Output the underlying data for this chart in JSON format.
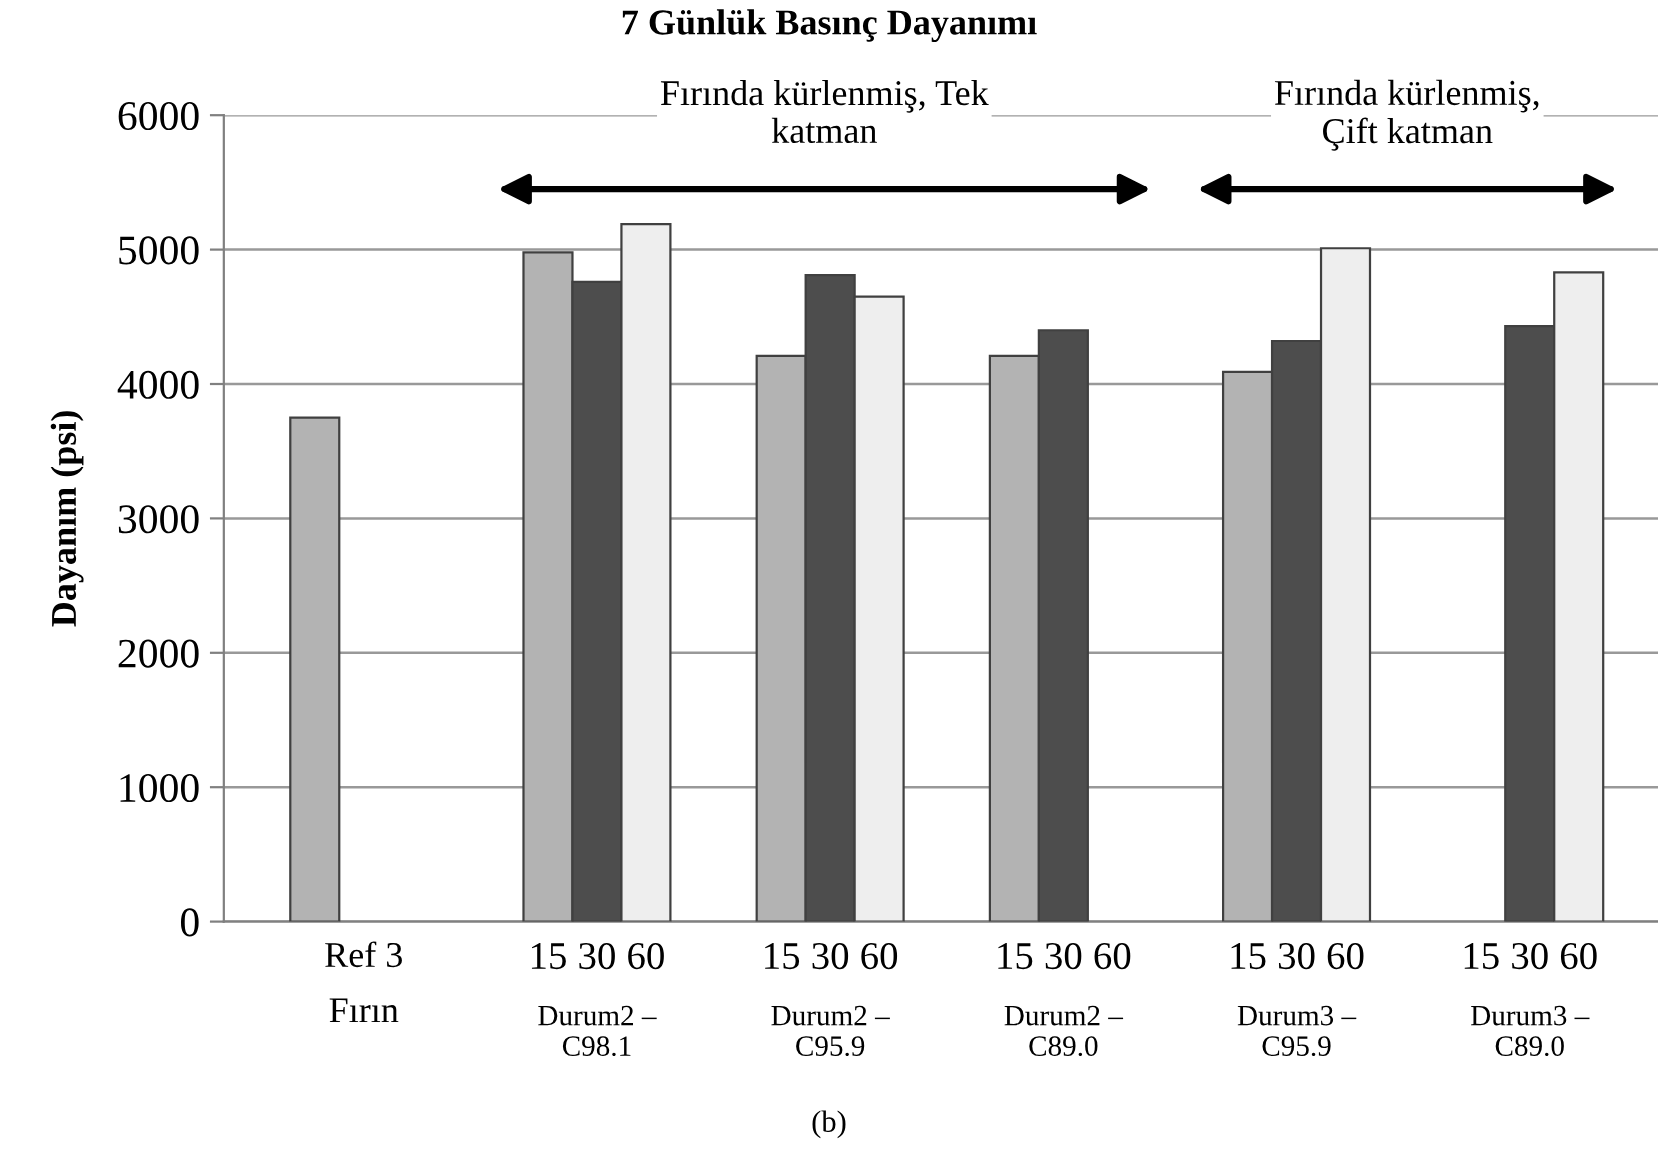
{
  "chart_data": {
    "type": "bar",
    "title": "7 Günlük Basınç Dayanımı",
    "ylabel": "Dayanım (psi)",
    "categories": [
      "Ref 3\nFırın",
      "Durum2 –\nC98.1",
      "Durum2 –\nC95.9",
      "Durum2 –\nC89.0",
      "Durum3 –\nC95.9",
      "Durum3 –\nC89.0"
    ],
    "series": [
      {
        "name": "15",
        "color": "#b3b3b3",
        "values": [
          3750,
          4980,
          4210,
          4210,
          4090,
          null
        ]
      },
      {
        "name": "30",
        "color": "#4d4d4d",
        "values": [
          null,
          4760,
          4810,
          4400,
          4320,
          4430
        ]
      },
      {
        "name": "60",
        "color": "#eeeeee",
        "values": [
          null,
          5190,
          4650,
          null,
          5010,
          4830
        ]
      }
    ],
    "ylim": [
      0,
      6000
    ],
    "yticks": [
      0,
      1000,
      2000,
      3000,
      4000,
      5000,
      6000
    ],
    "grid": "y",
    "annotations": [
      "Fırında kürlenmiş, Tek\nkatman",
      "Fırında kürlenmiş,\nÇift katman",
      "(b)"
    ]
  }
}
